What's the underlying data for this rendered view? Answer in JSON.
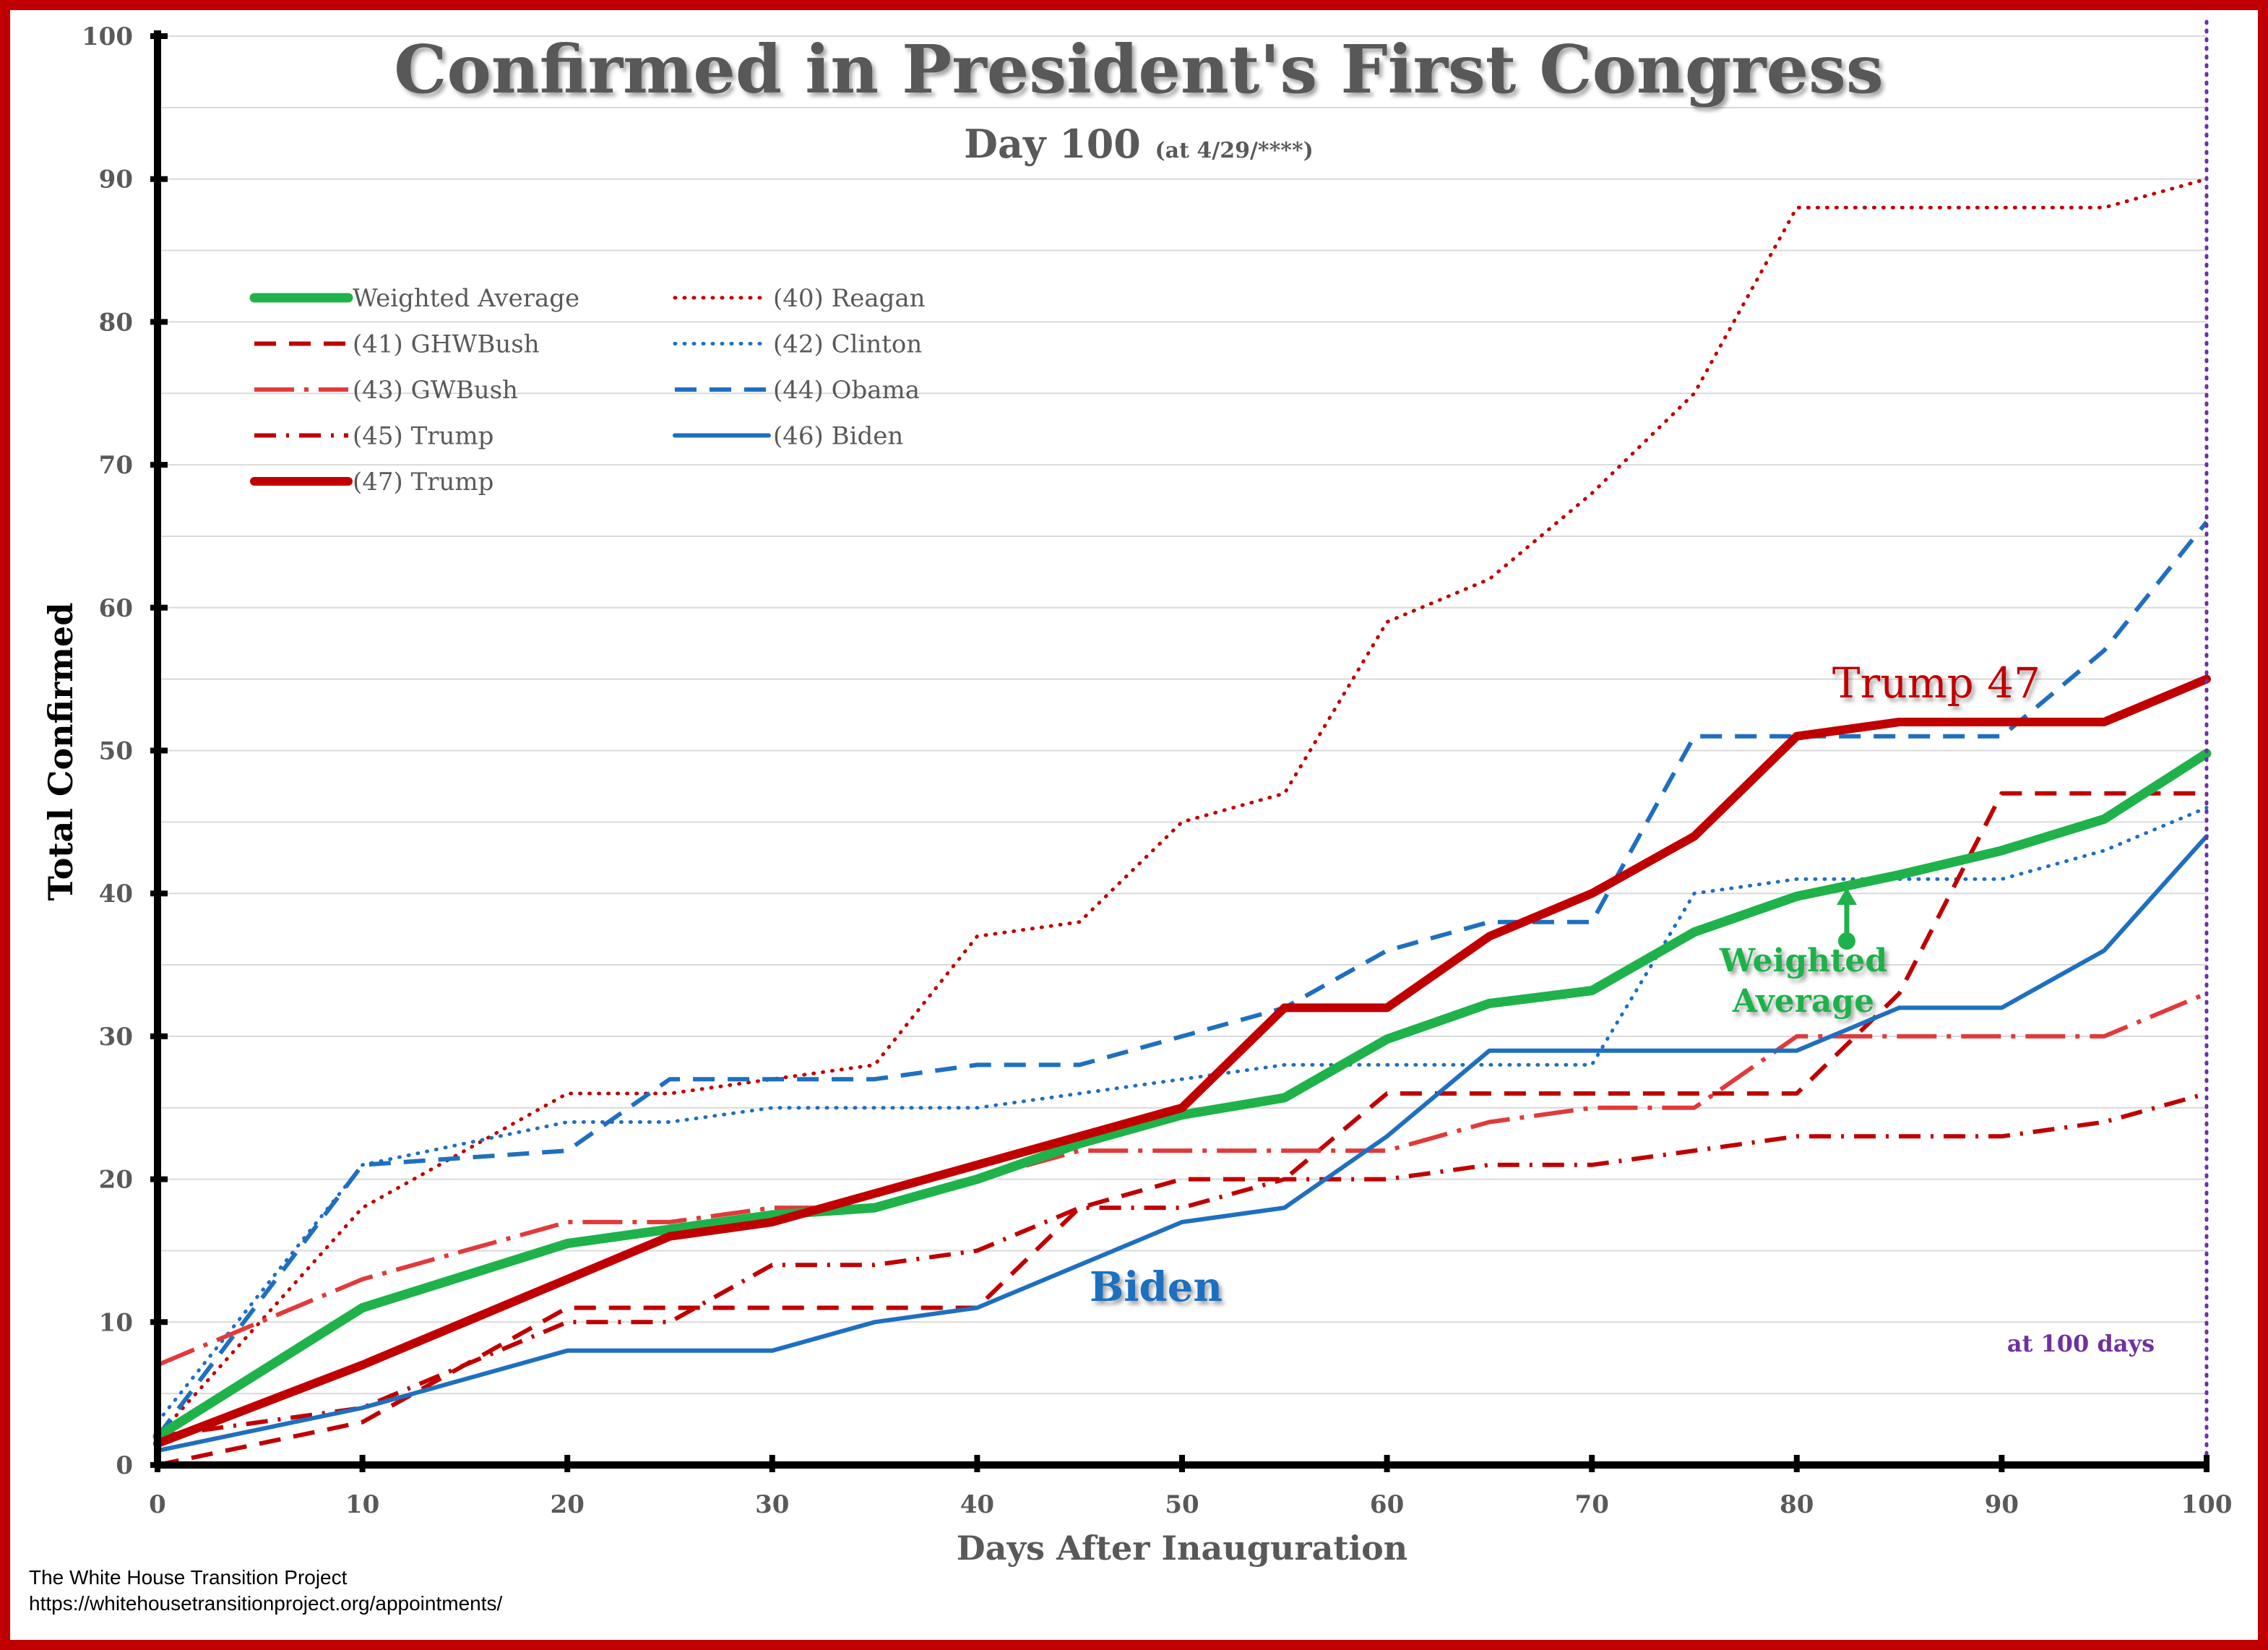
{
  "chart_data": {
    "type": "line",
    "title": "Confirmed in President's First Congress",
    "subtitle_main": "Day 100",
    "subtitle_note": "(at 4/29/****)",
    "xlabel": "Days After Inauguration",
    "ylabel": "Total Confirmed",
    "xlim": [
      0,
      100
    ],
    "ylim": [
      0,
      100
    ],
    "x_ticks": [
      "0",
      "10",
      "20",
      "30",
      "40",
      "50",
      "60",
      "70",
      "80",
      "90",
      "100"
    ],
    "y_ticks": [
      "0",
      "10",
      "20",
      "30",
      "40",
      "50",
      "60",
      "70",
      "80",
      "90",
      "100"
    ],
    "grid": "horizontal",
    "legend_position": "top-left",
    "vline": {
      "x": 100,
      "label": "at 100 days",
      "color": "#7030a0"
    },
    "annotations": {
      "trump47": "Trump 47",
      "biden": "Biden",
      "weighted_line1": "Weighted",
      "weighted_line2": "Average"
    },
    "series": [
      {
        "name": "Weighted Average",
        "color": "#1fb24a",
        "dash": "solid",
        "width": 13,
        "x": [
          0,
          10,
          20,
          25,
          30,
          35,
          40,
          45,
          50,
          55,
          60,
          65,
          70,
          75,
          80,
          85,
          90,
          95,
          100
        ],
        "y": [
          2,
          11,
          15.5,
          16.5,
          17.5,
          18,
          20,
          22.5,
          24.5,
          25.7,
          29.8,
          32.3,
          33.2,
          37.3,
          39.8,
          41.3,
          43,
          45.2,
          49.8
        ]
      },
      {
        "name": "(40) Reagan",
        "color": "#c00000",
        "dash": "dot",
        "width": 5,
        "x": [
          0,
          10,
          20,
          25,
          30,
          35,
          40,
          45,
          50,
          55,
          60,
          65,
          70,
          75,
          80,
          85,
          90,
          95,
          100
        ],
        "y": [
          2,
          18,
          26,
          26,
          27,
          28,
          37,
          38,
          45,
          47,
          59,
          62,
          68,
          75,
          88,
          88,
          88,
          88,
          90
        ]
      },
      {
        "name": "(41) GHWBush",
        "color": "#c00000",
        "dash": "dash",
        "width": 6,
        "x": [
          0,
          10,
          20,
          25,
          30,
          35,
          40,
          45,
          50,
          55,
          60,
          65,
          70,
          75,
          80,
          85,
          90,
          95,
          100
        ],
        "y": [
          0,
          3,
          11,
          11,
          11,
          11,
          11,
          18,
          20,
          20,
          26,
          26,
          26,
          26,
          26,
          33,
          47,
          47,
          47
        ]
      },
      {
        "name": "(42) Clinton",
        "color": "#1f6fbf",
        "dash": "dot",
        "width": 5,
        "x": [
          0,
          10,
          20,
          25,
          30,
          35,
          40,
          45,
          50,
          55,
          60,
          65,
          70,
          75,
          80,
          85,
          90,
          95,
          100
        ],
        "y": [
          3,
          21,
          24,
          24,
          25,
          25,
          25,
          26,
          27,
          28,
          28,
          28,
          28,
          40,
          41,
          41,
          41,
          43,
          46
        ]
      },
      {
        "name": "(43) GWBush",
        "color": "#e03a3a",
        "dash": "longdashdot",
        "width": 6,
        "x": [
          0,
          10,
          20,
          25,
          30,
          35,
          40,
          45,
          50,
          55,
          60,
          65,
          70,
          75,
          80,
          85,
          90,
          95,
          100
        ],
        "y": [
          7,
          13,
          17,
          17,
          18,
          18,
          20,
          22,
          22,
          22,
          22,
          24,
          25,
          25,
          30,
          30,
          30,
          30,
          33
        ]
      },
      {
        "name": "(44) Obama",
        "color": "#1f6fbf",
        "dash": "dash",
        "width": 6,
        "x": [
          0,
          10,
          20,
          25,
          30,
          35,
          40,
          45,
          50,
          55,
          60,
          65,
          70,
          75,
          80,
          85,
          90,
          95,
          100
        ],
        "y": [
          2,
          21,
          22,
          27,
          27,
          27,
          28,
          28,
          30,
          32,
          36,
          38,
          38,
          51,
          51,
          51,
          51,
          57,
          66
        ]
      },
      {
        "name": "(45) Trump",
        "color": "#c00000",
        "dash": "dashdot",
        "width": 6,
        "x": [
          0,
          10,
          20,
          25,
          30,
          35,
          40,
          45,
          50,
          55,
          60,
          65,
          70,
          75,
          80,
          85,
          90,
          95,
          100
        ],
        "y": [
          2,
          4,
          10,
          10,
          14,
          14,
          15,
          18,
          18,
          20,
          20,
          21,
          21,
          22,
          23,
          23,
          23,
          24,
          26
        ]
      },
      {
        "name": "(46) Biden",
        "color": "#1f6fbf",
        "dash": "solid",
        "width": 6,
        "x": [
          0,
          10,
          20,
          25,
          30,
          35,
          40,
          45,
          50,
          55,
          60,
          65,
          70,
          75,
          80,
          85,
          90,
          95,
          100
        ],
        "y": [
          1,
          4,
          8,
          8,
          8,
          10,
          11,
          14,
          17,
          18,
          23,
          29,
          29,
          29,
          29,
          32,
          32,
          36,
          44
        ]
      },
      {
        "name": "(47) Trump",
        "color": "#c00000",
        "dash": "solid",
        "width": 12,
        "x": [
          0,
          10,
          20,
          25,
          30,
          35,
          40,
          45,
          50,
          55,
          60,
          65,
          70,
          75,
          80,
          85,
          90,
          95,
          100
        ],
        "y": [
          1.5,
          7,
          13,
          16,
          17,
          19,
          21,
          23,
          25,
          32,
          32,
          37,
          40,
          44,
          51,
          52,
          52,
          52,
          55
        ]
      }
    ],
    "legend_order": [
      "Weighted Average",
      "(41) GHWBush",
      "(43) GWBush",
      "(45) Trump",
      "(47) Trump",
      "(40) Reagan",
      "(42) Clinton",
      "(44) Obama",
      "(46) Biden"
    ]
  },
  "source": {
    "line1": "The White House Transition Project",
    "line2": "https://whitehousetransitionproject.org/appointments/"
  },
  "colors": {
    "frame": "#c00000",
    "axis": "#000000",
    "grid": "#d9d9d9",
    "text": "#595959",
    "title": "#595959"
  }
}
